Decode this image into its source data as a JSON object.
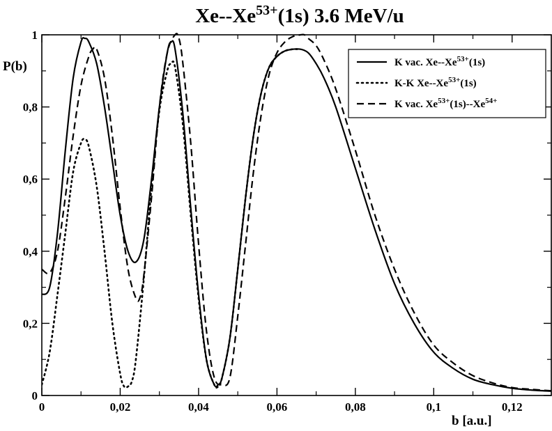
{
  "chart_data": {
    "type": "line",
    "title": {
      "parts": [
        {
          "text": "Xe--Xe",
          "sup": false
        },
        {
          "text": "53+",
          "sup": true
        },
        {
          "text": "(1s)    3.6 MeV/u",
          "sup": false
        }
      ]
    },
    "xlabel": "b [a.u.]",
    "ylabel": "P(b)",
    "xlim": [
      0,
      0.13
    ],
    "ylim": [
      0,
      1
    ],
    "x_ticks": [
      0,
      0.02,
      0.04,
      0.06,
      0.08,
      0.1,
      0.12
    ],
    "x_tick_labels": [
      "0",
      "0,02",
      "0,04",
      "0,06",
      "0,08",
      "0,1",
      "0,12"
    ],
    "y_ticks": [
      0,
      0.2,
      0.4,
      0.6,
      0.8,
      1
    ],
    "y_tick_labels": [
      "0",
      "0,2",
      "0,4",
      "0,6",
      "0,8",
      "1"
    ],
    "grid": false,
    "legend_position": "top-right",
    "series": [
      {
        "name": "K vac.  Xe--Xe53+(1s)",
        "legend_parts": [
          {
            "text": "K vac.  Xe--Xe",
            "sup": false
          },
          {
            "text": "53+",
            "sup": true
          },
          {
            "text": "(1s)",
            "sup": false
          }
        ],
        "style": "solid",
        "x": [
          0,
          0.002,
          0.004,
          0.006,
          0.008,
          0.01,
          0.011,
          0.012,
          0.014,
          0.016,
          0.018,
          0.02,
          0.022,
          0.024,
          0.026,
          0.028,
          0.03,
          0.032,
          0.033,
          0.034,
          0.036,
          0.038,
          0.04,
          0.042,
          0.044,
          0.045,
          0.046,
          0.048,
          0.05,
          0.052,
          0.054,
          0.056,
          0.058,
          0.06,
          0.062,
          0.064,
          0.066,
          0.068,
          0.07,
          0.072,
          0.075,
          0.08,
          0.085,
          0.09,
          0.095,
          0.1,
          0.105,
          0.11,
          0.115,
          0.12,
          0.125,
          0.13
        ],
        "y": [
          0.28,
          0.3,
          0.45,
          0.68,
          0.88,
          0.98,
          0.99,
          0.98,
          0.92,
          0.8,
          0.65,
          0.5,
          0.4,
          0.37,
          0.43,
          0.6,
          0.8,
          0.95,
          0.98,
          0.96,
          0.78,
          0.52,
          0.28,
          0.1,
          0.03,
          0.03,
          0.05,
          0.16,
          0.35,
          0.55,
          0.72,
          0.84,
          0.91,
          0.94,
          0.955,
          0.96,
          0.96,
          0.95,
          0.92,
          0.88,
          0.8,
          0.63,
          0.46,
          0.31,
          0.2,
          0.12,
          0.075,
          0.045,
          0.03,
          0.02,
          0.015,
          0.012
        ]
      },
      {
        "name": "K-K      Xe--Xe53+(1s)",
        "legend_parts": [
          {
            "text": "K-K      Xe--Xe",
            "sup": false
          },
          {
            "text": "53+",
            "sup": true
          },
          {
            "text": "(1s)",
            "sup": false
          }
        ],
        "style": "dotted",
        "x": [
          0,
          0.002,
          0.004,
          0.006,
          0.008,
          0.01,
          0.011,
          0.012,
          0.014,
          0.016,
          0.018,
          0.02,
          0.021,
          0.022,
          0.023,
          0.024,
          0.026,
          0.028,
          0.03,
          0.032,
          0.033,
          0.034,
          0.036,
          0.038,
          0.04,
          0.042,
          0.044,
          0.045,
          0.046,
          0.048,
          0.05,
          0.052,
          0.054,
          0.056,
          0.058,
          0.06,
          0.062,
          0.064,
          0.066
        ],
        "y": [
          0.03,
          0.12,
          0.28,
          0.45,
          0.62,
          0.7,
          0.71,
          0.69,
          0.58,
          0.4,
          0.2,
          0.06,
          0.025,
          0.025,
          0.04,
          0.1,
          0.32,
          0.58,
          0.79,
          0.9,
          0.92,
          0.91,
          0.75,
          0.5,
          0.27,
          0.1,
          0.03,
          0.025,
          0.05,
          0.16,
          0.35,
          0.55,
          0.72,
          0.84,
          0.91,
          0.94,
          0.955,
          0.96,
          0.96
        ]
      },
      {
        "name": "K vac.  Xe53+(1s)--Xe54+",
        "legend_parts": [
          {
            "text": "K vac.  Xe",
            "sup": false
          },
          {
            "text": "53+",
            "sup": true
          },
          {
            "text": "(1s)--Xe",
            "sup": false
          },
          {
            "text": "54+",
            "sup": true
          }
        ],
        "style": "dashed",
        "x": [
          0,
          0.002,
          0.004,
          0.006,
          0.008,
          0.01,
          0.012,
          0.013,
          0.014,
          0.016,
          0.018,
          0.02,
          0.022,
          0.024,
          0.025,
          0.026,
          0.028,
          0.03,
          0.032,
          0.034,
          0.035,
          0.036,
          0.038,
          0.04,
          0.042,
          0.044,
          0.046,
          0.048,
          0.05,
          0.052,
          0.054,
          0.056,
          0.058,
          0.06,
          0.062,
          0.064,
          0.066,
          0.067,
          0.068,
          0.07,
          0.072,
          0.075,
          0.08,
          0.085,
          0.09,
          0.095,
          0.1,
          0.105,
          0.11,
          0.115,
          0.12,
          0.125,
          0.13
        ],
        "y": [
          0.35,
          0.34,
          0.4,
          0.55,
          0.72,
          0.86,
          0.94,
          0.96,
          0.96,
          0.88,
          0.72,
          0.52,
          0.35,
          0.27,
          0.27,
          0.33,
          0.55,
          0.8,
          0.95,
          1.0,
          0.99,
          0.92,
          0.7,
          0.42,
          0.18,
          0.05,
          0.03,
          0.05,
          0.22,
          0.42,
          0.62,
          0.78,
          0.89,
          0.95,
          0.98,
          0.995,
          1.0,
          1.0,
          0.99,
          0.97,
          0.93,
          0.85,
          0.68,
          0.5,
          0.35,
          0.23,
          0.14,
          0.09,
          0.055,
          0.035,
          0.022,
          0.017,
          0.013
        ]
      }
    ]
  }
}
